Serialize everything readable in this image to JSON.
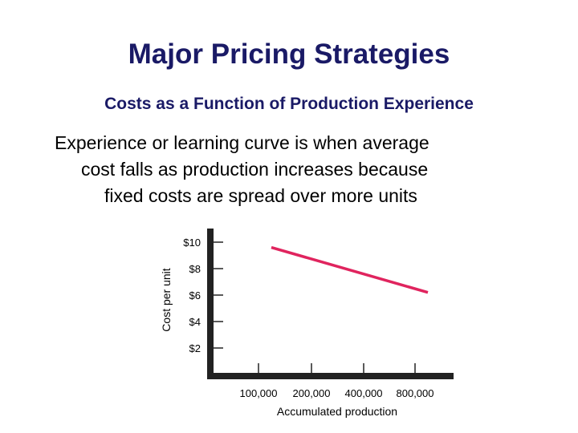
{
  "slide": {
    "title": "Major Pricing Strategies",
    "subtitle": "Costs as a Function of Production Experience",
    "body": [
      "Experience or learning curve is when average",
      "cost falls as production increases because",
      "fixed costs are spread over more units"
    ]
  },
  "chart_data": {
    "type": "line",
    "title": "",
    "xlabel": "Accumulated production",
    "ylabel": "Cost per unit",
    "categories": [
      "100,000",
      "200,000",
      "400,000",
      "800,000"
    ],
    "y_ticks": [
      "$10",
      "$8",
      "$6",
      "$4",
      "$2"
    ],
    "y_tick_values": [
      10,
      8,
      6,
      4,
      2
    ],
    "ylim": [
      0,
      11
    ],
    "series": [
      {
        "x_start": "100,000",
        "x_end": "800,000",
        "y_start": 9.6,
        "y_end": 6.2
      }
    ],
    "line_color": "#e0245e",
    "axis_color": "#222222"
  }
}
